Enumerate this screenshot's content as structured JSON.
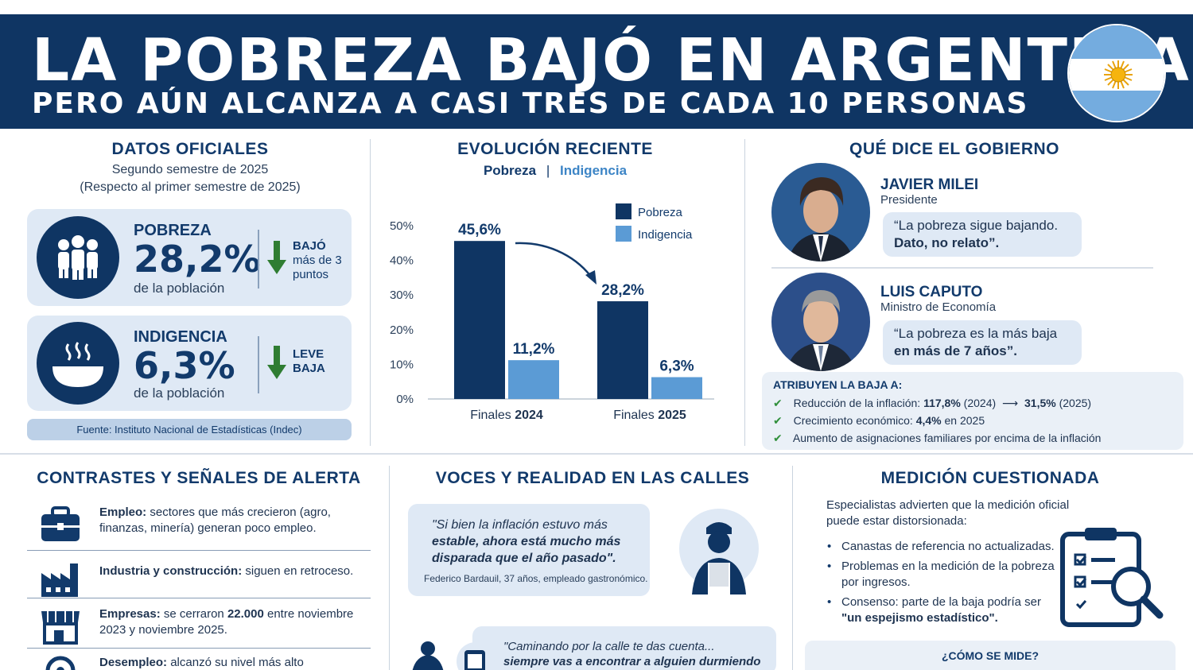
{
  "header": {
    "title": "LA POBREZA BAJÓ EN ARGENTINA",
    "subtitle": "PERO AÚN ALCANZA A CASI TRES DE CADA 10 PERSONAS",
    "flag_colors": {
      "celeste": "#74acdf",
      "white": "#ffffff",
      "sun": "#f6b40e"
    }
  },
  "datos": {
    "title": "DATOS OFICIALES",
    "period": "Segundo semestre de 2025",
    "comparison": "(Respecto al primer semestre de 2025)",
    "pobreza": {
      "label": "POBREZA",
      "value": "28,2%",
      "note": "de la población",
      "trend_l1": "BAJÓ",
      "trend_l2": "más de 3",
      "trend_l3": "puntos"
    },
    "indigencia": {
      "label": "INDIGENCIA",
      "value": "6,3%",
      "note": "de la población",
      "trend_l1": "LEVE",
      "trend_l2": "BAJA"
    },
    "source": "Fuente: Instituto Nacional de Estadísticas (Indec)"
  },
  "evolucion": {
    "title": "EVOLUCIÓN RECIENTE",
    "sub_pobreza": "Pobreza",
    "sub_sep": "|",
    "sub_indigencia": "Indigencia"
  },
  "chart_data": {
    "type": "bar",
    "categories": [
      "Finales 2024",
      "Finales 2025"
    ],
    "category_prefix": "Finales",
    "category_years": [
      "2024",
      "2025"
    ],
    "series": [
      {
        "name": "Pobreza",
        "values": [
          45.6,
          28.2
        ],
        "labels": [
          "45,6%",
          "28,2%"
        ],
        "color": "#0f3563"
      },
      {
        "name": "Indigencia",
        "values": [
          11.2,
          6.3
        ],
        "labels": [
          "11,2%",
          "6,3%"
        ],
        "color": "#5b9bd5"
      }
    ],
    "ylim": [
      0,
      50
    ],
    "yticks": [
      0,
      10,
      20,
      30,
      40,
      50
    ],
    "ytick_labels": [
      "0%",
      "10%",
      "20%",
      "30%",
      "40%",
      "50%"
    ],
    "legend_placement": "top-right",
    "grid": false
  },
  "gobierno": {
    "title": "QUÉ DICE EL GOBIERNO",
    "milei": {
      "name": "JAVIER MILEI",
      "role": "Presidente",
      "quote_l1": "“La pobreza sigue bajando.",
      "quote_l2": "Dato, no relato”."
    },
    "caputo": {
      "name": "LUIS CAPUTO",
      "role": "Ministro de Economía",
      "quote_l1": "“La pobreza  es la más baja",
      "quote_l2": "en más de 7 años”."
    },
    "attrib_title": "ATRIBUYEN LA BAJA A:",
    "attrib_1a": "Reducción de la inflación:",
    "attrib_1b": "117,8%",
    "attrib_1c": "(2024)",
    "attrib_1d": "31,5%",
    "attrib_1e": "(2025)",
    "attrib_2a": "Crecimiento económico:",
    "attrib_2b": "4,4%",
    "attrib_2c": "en 2025",
    "attrib_3": "Aumento de asignaciones familiares por encima de la inflación"
  },
  "contrastes": {
    "title": "CONTRASTES Y SEÑALES DE ALERTA",
    "empleo_b": "Empleo:",
    "empleo_t": "sectores que más crecieron (agro, finanzas, minería) generan poco empleo.",
    "industria_b": "Industria y construcción:",
    "industria_t": "siguen en retroceso.",
    "empresas_b": "Empresas:",
    "empresas_t1": "se cerraron",
    "empresas_n": "22.000",
    "empresas_t2": "entre noviembre 2023 y noviembre 2025.",
    "desempleo_b": "Desempleo:",
    "desempleo_t": "alcanzó su nivel más alto"
  },
  "voces": {
    "title": "VOCES Y REALIDAD EN LAS CALLES",
    "q1_l1": "\"Si bien la inflación estuvo más",
    "q1_l2": "estable, ahora está mucho más",
    "q1_l3": "disparada que el año pasado\".",
    "q1_author": "Federico Bardauil, 37 años, empleado gastronómico.",
    "q2_l1": "\"Caminando por la calle te das cuenta...",
    "q2_l2": "siempre vas a encontrar a alguien durmiendo"
  },
  "medicion": {
    "title": "MEDICIÓN CUESTIONADA",
    "intro": "Especialistas advierten que la medición oficial puede estar distorsionada:",
    "item1": "Canastas de referencia no actualizadas.",
    "item2": "Problemas en la medición de la pobreza por ingresos.",
    "item3a": "Consenso: parte de la baja podría ser",
    "item3b": "\"un espejismo estadístico\".",
    "how": "¿CÓMO SE MIDE?"
  }
}
